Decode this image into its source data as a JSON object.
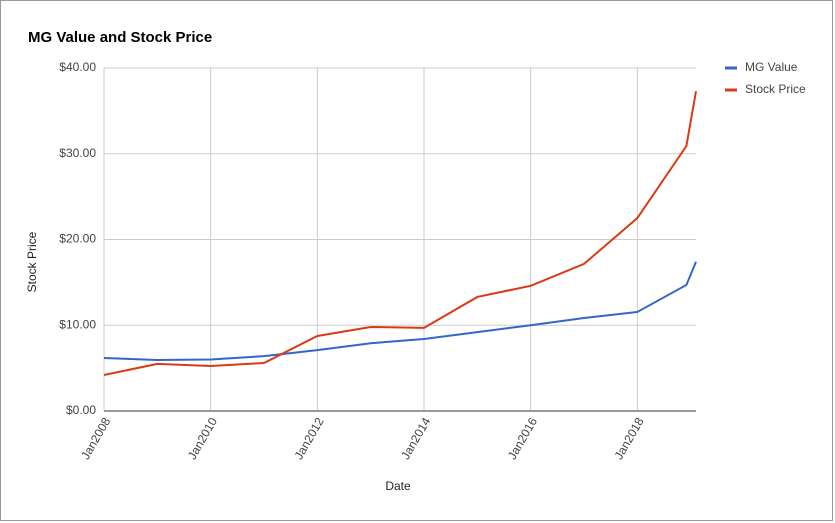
{
  "chart_data": {
    "type": "line",
    "title": "MG Value and Stock Price",
    "x_label": "Date",
    "y_label": "Stock Price",
    "x": [
      2008,
      2009,
      2010,
      2011,
      2012,
      2013,
      2014,
      2015,
      2016,
      2017,
      2018,
      2018.92,
      2019.1
    ],
    "series": [
      {
        "name": "MG Value",
        "color": "#3366cc",
        "values": [
          6.18,
          5.95,
          6.0,
          6.4,
          7.1,
          7.9,
          8.4,
          9.2,
          10.0,
          10.85,
          11.55,
          14.7,
          17.4
        ]
      },
      {
        "name": "Stock Price",
        "color": "#dc3912",
        "values": [
          4.2,
          5.5,
          5.25,
          5.6,
          8.75,
          9.8,
          9.7,
          13.3,
          14.6,
          17.15,
          22.5,
          30.9,
          37.3
        ]
      }
    ],
    "xlim": [
      2008,
      2019.1
    ],
    "xticks": [
      {
        "value": 2008,
        "label": "Jan2008"
      },
      {
        "value": 2010,
        "label": "Jan2010"
      },
      {
        "value": 2012,
        "label": "Jan2012"
      },
      {
        "value": 2014,
        "label": "Jan2014"
      },
      {
        "value": 2016,
        "label": "Jan2016"
      },
      {
        "value": 2018,
        "label": "Jan2018"
      }
    ],
    "ylim": [
      0,
      40
    ],
    "yticks": [
      {
        "value": 0,
        "label": "$0.00"
      },
      {
        "value": 10,
        "label": "$10.00"
      },
      {
        "value": 20,
        "label": "$20.00"
      },
      {
        "value": 30,
        "label": "$30.00"
      },
      {
        "value": 40,
        "label": "$40.00"
      }
    ],
    "grid": true,
    "legend": "right"
  }
}
